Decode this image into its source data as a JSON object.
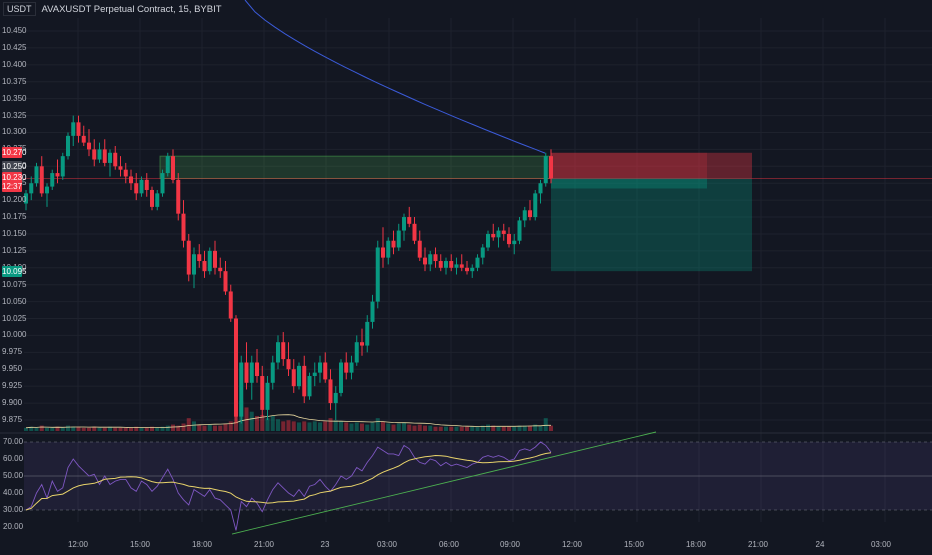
{
  "header": {
    "unit": "USDT",
    "title": "AVAXUSDT Perpetual Contract, 15, BYBIT"
  },
  "price_axis": {
    "labels": [
      "10.450",
      "10.425",
      "10.400",
      "10.375",
      "10.350",
      "10.325",
      "10.300",
      "10.275",
      "10.250",
      "10.225",
      "10.200",
      "10.175",
      "10.150",
      "10.125",
      "10.100",
      "10.075",
      "10.050",
      "10.025",
      "10.000",
      "9.975",
      "9.950",
      "9.925",
      "9.900",
      "9.875"
    ],
    "tags": [
      {
        "text": "10.270",
        "color": "#f23645",
        "price": 10.27
      },
      {
        "text": "10.250",
        "color": "#434651",
        "price": 10.25
      },
      {
        "text": "10.230",
        "color": "#f23645",
        "price": 10.233
      },
      {
        "text": "12:37",
        "color": "#f23645",
        "price": 10.22
      },
      {
        "text": "10.095",
        "color": "#089981",
        "price": 10.095
      }
    ]
  },
  "rsi_axis": {
    "labels": [
      "70.00",
      "60.00",
      "50.00",
      "40.00",
      "30.00",
      "20.00"
    ]
  },
  "time_axis": {
    "labels": [
      "12:00",
      "15:00",
      "18:00",
      "21:00",
      "23",
      "03:00",
      "06:00",
      "09:00",
      "12:00",
      "15:00",
      "18:00",
      "21:00",
      "24",
      "03:00"
    ]
  },
  "colors": {
    "up": "#089981",
    "down": "#f23645",
    "bg": "#131722",
    "grid": "#1e222d",
    "ma": "#3b5bd9",
    "rsi": "#7e57c2",
    "rsi_ma": "#e8d36b",
    "trend": "#4caf50"
  },
  "chart_data": {
    "type": "candlestick",
    "symbol": "AVAXUSDT",
    "interval": "15",
    "ylim": [
      9.86,
      10.46
    ],
    "candles": [
      [
        10.195,
        10.215,
        10.185,
        10.21
      ],
      [
        10.21,
        10.235,
        10.2,
        10.225
      ],
      [
        10.225,
        10.255,
        10.22,
        10.25
      ],
      [
        10.25,
        10.265,
        10.205,
        10.21
      ],
      [
        10.21,
        10.225,
        10.19,
        10.22
      ],
      [
        10.22,
        10.245,
        10.215,
        10.24
      ],
      [
        10.24,
        10.26,
        10.225,
        10.235
      ],
      [
        10.235,
        10.27,
        10.23,
        10.265
      ],
      [
        10.265,
        10.3,
        10.26,
        10.295
      ],
      [
        10.295,
        10.325,
        10.28,
        10.315
      ],
      [
        10.315,
        10.325,
        10.285,
        10.295
      ],
      [
        10.295,
        10.31,
        10.28,
        10.285
      ],
      [
        10.285,
        10.305,
        10.265,
        10.275
      ],
      [
        10.275,
        10.29,
        10.25,
        10.26
      ],
      [
        10.26,
        10.285,
        10.255,
        10.275
      ],
      [
        10.275,
        10.29,
        10.25,
        10.255
      ],
      [
        10.255,
        10.275,
        10.235,
        10.27
      ],
      [
        10.27,
        10.28,
        10.245,
        10.25
      ],
      [
        10.25,
        10.265,
        10.235,
        10.245
      ],
      [
        10.245,
        10.255,
        10.225,
        10.235
      ],
      [
        10.235,
        10.245,
        10.215,
        10.225
      ],
      [
        10.225,
        10.24,
        10.2,
        10.21
      ],
      [
        10.21,
        10.235,
        10.205,
        10.23
      ],
      [
        10.23,
        10.24,
        10.205,
        10.215
      ],
      [
        10.215,
        10.22,
        10.185,
        10.19
      ],
      [
        10.19,
        10.215,
        10.185,
        10.21
      ],
      [
        10.21,
        10.245,
        10.205,
        10.24
      ],
      [
        10.24,
        10.27,
        10.235,
        10.265
      ],
      [
        10.265,
        10.275,
        10.225,
        10.23
      ],
      [
        10.23,
        10.24,
        10.17,
        10.18
      ],
      [
        10.18,
        10.2,
        10.13,
        10.14
      ],
      [
        10.14,
        10.15,
        10.08,
        10.09
      ],
      [
        10.09,
        10.13,
        10.07,
        10.12
      ],
      [
        10.12,
        10.135,
        10.1,
        10.11
      ],
      [
        10.11,
        10.125,
        10.085,
        10.095
      ],
      [
        10.095,
        10.13,
        10.09,
        10.125
      ],
      [
        10.125,
        10.14,
        10.09,
        10.1
      ],
      [
        10.1,
        10.115,
        10.085,
        10.095
      ],
      [
        10.095,
        10.11,
        10.06,
        10.065
      ],
      [
        10.065,
        10.075,
        10.02,
        10.025
      ],
      [
        10.025,
        10.03,
        9.87,
        9.88
      ],
      [
        9.88,
        9.97,
        9.87,
        9.96
      ],
      [
        9.96,
        9.99,
        9.92,
        9.93
      ],
      [
        9.93,
        9.97,
        9.905,
        9.96
      ],
      [
        9.96,
        9.98,
        9.93,
        9.94
      ],
      [
        9.94,
        9.955,
        9.88,
        9.89
      ],
      [
        9.89,
        9.94,
        9.875,
        9.93
      ],
      [
        9.93,
        9.97,
        9.92,
        9.96
      ],
      [
        9.96,
        10.0,
        9.95,
        9.99
      ],
      [
        9.99,
        10.005,
        9.955,
        9.965
      ],
      [
        9.965,
        9.99,
        9.94,
        9.95
      ],
      [
        9.95,
        9.965,
        9.915,
        9.925
      ],
      [
        9.925,
        9.96,
        9.92,
        9.955
      ],
      [
        9.955,
        9.97,
        9.9,
        9.91
      ],
      [
        9.91,
        9.945,
        9.905,
        9.94
      ],
      [
        9.94,
        9.96,
        9.925,
        9.945
      ],
      [
        9.945,
        9.97,
        9.93,
        9.96
      ],
      [
        9.96,
        9.975,
        9.93,
        9.935
      ],
      [
        9.935,
        9.95,
        9.89,
        9.9
      ],
      [
        9.9,
        9.925,
        9.875,
        9.915
      ],
      [
        9.915,
        9.965,
        9.91,
        9.96
      ],
      [
        9.96,
        9.975,
        9.935,
        9.945
      ],
      [
        9.945,
        9.97,
        9.935,
        9.96
      ],
      [
        9.96,
        10.0,
        9.955,
        9.99
      ],
      [
        9.99,
        10.01,
        9.97,
        9.985
      ],
      [
        9.985,
        10.03,
        9.975,
        10.02
      ],
      [
        10.02,
        10.06,
        10.01,
        10.05
      ],
      [
        10.05,
        10.14,
        10.04,
        10.13
      ],
      [
        10.13,
        10.16,
        10.1,
        10.115
      ],
      [
        10.115,
        10.145,
        10.105,
        10.14
      ],
      [
        10.14,
        10.155,
        10.12,
        10.13
      ],
      [
        10.13,
        10.165,
        10.125,
        10.155
      ],
      [
        10.155,
        10.18,
        10.14,
        10.175
      ],
      [
        10.175,
        10.19,
        10.16,
        10.165
      ],
      [
        10.165,
        10.175,
        10.135,
        10.14
      ],
      [
        10.14,
        10.155,
        10.11,
        10.115
      ],
      [
        10.115,
        10.13,
        10.095,
        10.105
      ],
      [
        10.105,
        10.125,
        10.095,
        10.12
      ],
      [
        10.12,
        10.13,
        10.1,
        10.11
      ],
      [
        10.11,
        10.12,
        10.095,
        10.1
      ],
      [
        10.1,
        10.115,
        10.09,
        10.11
      ],
      [
        10.11,
        10.12,
        10.095,
        10.1
      ],
      [
        10.1,
        10.115,
        10.09,
        10.105
      ],
      [
        10.105,
        10.12,
        10.095,
        10.1
      ],
      [
        10.1,
        10.11,
        10.09,
        10.095
      ],
      [
        10.095,
        10.105,
        10.085,
        10.1
      ],
      [
        10.1,
        10.12,
        10.095,
        10.115
      ],
      [
        10.115,
        10.135,
        10.105,
        10.13
      ],
      [
        10.13,
        10.155,
        10.125,
        10.15
      ],
      [
        10.15,
        10.165,
        10.14,
        10.145
      ],
      [
        10.145,
        10.16,
        10.13,
        10.155
      ],
      [
        10.155,
        10.165,
        10.14,
        10.15
      ],
      [
        10.15,
        10.16,
        10.13,
        10.135
      ],
      [
        10.135,
        10.15,
        10.12,
        10.14
      ],
      [
        10.14,
        10.175,
        10.135,
        10.17
      ],
      [
        10.17,
        10.19,
        10.16,
        10.185
      ],
      [
        10.185,
        10.2,
        10.17,
        10.175
      ],
      [
        10.175,
        10.215,
        10.17,
        10.21
      ],
      [
        10.21,
        10.23,
        10.195,
        10.225
      ],
      [
        10.225,
        10.27,
        10.22,
        10.265
      ],
      [
        10.265,
        10.275,
        10.225,
        10.232
      ]
    ],
    "volume": [
      3,
      4,
      3,
      5,
      3,
      3,
      4,
      3,
      5,
      4,
      4,
      3,
      3,
      4,
      3,
      3,
      4,
      3,
      3,
      3,
      3,
      4,
      3,
      3,
      4,
      3,
      4,
      5,
      6,
      5,
      7,
      12,
      9,
      6,
      5,
      6,
      5,
      5,
      7,
      9,
      14,
      28,
      22,
      18,
      14,
      15,
      12,
      14,
      11,
      9,
      10,
      9,
      8,
      9,
      8,
      9,
      8,
      9,
      12,
      10,
      9,
      8,
      7,
      8,
      7,
      6,
      8,
      12,
      9,
      7,
      6,
      7,
      8,
      6,
      5,
      6,
      5,
      5,
      4,
      4,
      4,
      4,
      4,
      4,
      4,
      4,
      4,
      5,
      6,
      5,
      4,
      4,
      4,
      4,
      5,
      5,
      5,
      6,
      5,
      12,
      5
    ],
    "rsi": {
      "series_rsi": [
        30,
        32,
        40,
        45,
        37,
        47,
        41,
        43,
        55,
        60,
        56,
        53,
        50,
        51,
        45,
        50,
        45,
        47,
        48,
        48,
        43,
        41,
        47,
        45,
        41,
        44,
        49,
        54,
        48,
        40,
        36,
        33,
        42,
        40,
        38,
        42,
        37,
        36,
        33,
        30,
        18,
        35,
        32,
        37,
        34,
        29,
        36,
        42,
        46,
        43,
        40,
        38,
        42,
        38,
        44,
        45,
        48,
        44,
        41,
        45,
        50,
        48,
        50,
        55,
        53,
        58,
        62,
        67,
        65,
        63,
        63,
        62,
        68,
        66,
        61,
        58,
        57,
        60,
        59,
        56,
        58,
        56,
        57,
        56,
        55,
        57,
        58,
        61,
        62,
        61,
        62,
        61,
        59,
        60,
        65,
        66,
        65,
        67,
        70,
        68,
        64
      ],
      "levels": [
        70,
        50,
        30
      ],
      "ylim": [
        15,
        72
      ]
    },
    "risk_reward_box": {
      "entry": 10.232,
      "stop": 10.27,
      "target": 10.095
    },
    "demand_zone": {
      "top": 10.265,
      "bottom": 10.232
    }
  }
}
